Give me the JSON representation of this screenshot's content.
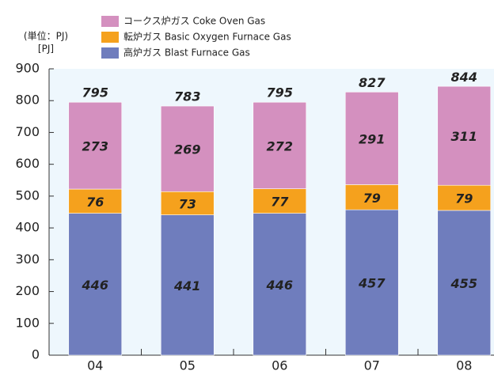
{
  "chart_data": {
    "type": "stacked_bar",
    "unit_label": "(単位：PJ)",
    "ylabel": "[PJ]",
    "categories": [
      "04",
      "05",
      "06",
      "07",
      "08"
    ],
    "series": [
      {
        "name": "高炉ガス Blast Furnace Gas",
        "color": "#6f7dbd",
        "values": [
          446,
          441,
          446,
          457,
          455
        ]
      },
      {
        "name": "転炉ガス Basic Oxygen Furnace Gas",
        "color": "#f5a11d",
        "values": [
          76,
          73,
          77,
          79,
          79
        ]
      },
      {
        "name": "コークス炉ガス Coke Oven Gas",
        "color": "#d490bf",
        "values": [
          273,
          269,
          272,
          291,
          311
        ]
      }
    ],
    "totals": [
      795,
      783,
      795,
      827,
      844
    ],
    "ylim": [
      0,
      900
    ],
    "yticks": [
      0,
      100,
      200,
      300,
      400,
      500,
      600,
      700,
      800,
      900
    ]
  }
}
